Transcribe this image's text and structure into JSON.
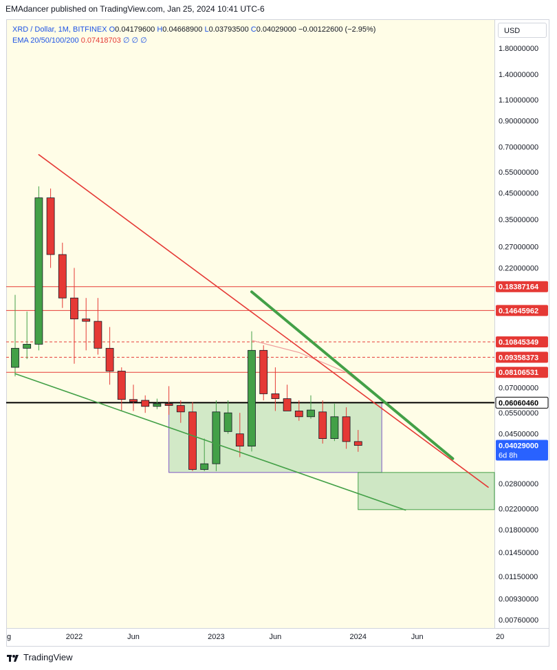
{
  "publisher_line": "EMAdancer published on TradingView.com, Jan 25, 2024 10:41 UTC-6",
  "legend": {
    "symbol": "XRD / Dollar, 1M, BITFINEX",
    "open_label": "O",
    "open": "0.04179600",
    "high_label": "H",
    "high": "0.04668900",
    "low_label": "L",
    "low": "0.03793500",
    "close_label": "C",
    "close": "0.04029000",
    "change": "−0.00122600 (−2.95%)",
    "ema_title": "EMA 20/50/100/200",
    "ema_value": "0.07418703",
    "ema_empty": "∅ ∅ ∅"
  },
  "currency_button": "USD",
  "footer_brand": "TradingView",
  "colors": {
    "up": "#43a047",
    "down": "#e53935",
    "background": "#fffde7",
    "label_red": "#e53935",
    "label_blue": "#2962ff",
    "box_fill": "#a5d6a7"
  },
  "chart_data": {
    "type": "candlestick",
    "scale": "log",
    "y_ticks": [
      "1.80000000",
      "1.40000000",
      "1.10000000",
      "0.90000000",
      "0.70000000",
      "0.55000000",
      "0.45000000",
      "0.35000000",
      "0.27000000",
      "0.22000000",
      "0.07000000",
      "0.05500000",
      "0.04500000",
      "0.02800000",
      "0.02200000",
      "0.01800000",
      "0.01450000",
      "0.01150000",
      "0.00930000",
      "0.00760000"
    ],
    "x_ticks": [
      "g",
      "2022",
      "Jun",
      "2023",
      "Jun",
      "2024",
      "Jun",
      "20"
    ],
    "candles": [
      {
        "date": "2021-08",
        "open": 0.085,
        "high": 0.17,
        "low": 0.078,
        "close": 0.102
      },
      {
        "date": "2021-09",
        "open": 0.102,
        "high": 0.145,
        "low": 0.092,
        "close": 0.106
      },
      {
        "date": "2021-10",
        "open": 0.106,
        "high": 0.48,
        "low": 0.1,
        "close": 0.43
      },
      {
        "date": "2021-11",
        "open": 0.43,
        "high": 0.47,
        "low": 0.22,
        "close": 0.25
      },
      {
        "date": "2021-12",
        "open": 0.25,
        "high": 0.28,
        "low": 0.15,
        "close": 0.165
      },
      {
        "date": "2022-01",
        "open": 0.165,
        "high": 0.22,
        "low": 0.088,
        "close": 0.135
      },
      {
        "date": "2022-02",
        "open": 0.135,
        "high": 0.165,
        "low": 0.1,
        "close": 0.132
      },
      {
        "date": "2022-03",
        "open": 0.132,
        "high": 0.165,
        "low": 0.096,
        "close": 0.102
      },
      {
        "date": "2022-04",
        "open": 0.102,
        "high": 0.125,
        "low": 0.072,
        "close": 0.082
      },
      {
        "date": "2022-05",
        "open": 0.082,
        "high": 0.085,
        "low": 0.056,
        "close": 0.0625
      },
      {
        "date": "2022-06",
        "open": 0.0625,
        "high": 0.072,
        "low": 0.056,
        "close": 0.0612
      },
      {
        "date": "2022-07",
        "open": 0.062,
        "high": 0.065,
        "low": 0.055,
        "close": 0.0585
      },
      {
        "date": "2022-08",
        "open": 0.0585,
        "high": 0.063,
        "low": 0.057,
        "close": 0.06
      },
      {
        "date": "2022-09",
        "open": 0.06,
        "high": 0.071,
        "low": 0.054,
        "close": 0.059
      },
      {
        "date": "2022-10",
        "open": 0.059,
        "high": 0.062,
        "low": 0.05,
        "close": 0.0555
      },
      {
        "date": "2022-11",
        "open": 0.0555,
        "high": 0.061,
        "low": 0.0315,
        "close": 0.032
      },
      {
        "date": "2022-12",
        "open": 0.032,
        "high": 0.043,
        "low": 0.0315,
        "close": 0.0338
      },
      {
        "date": "2022-12b",
        "open": 0.0338,
        "high": 0.062,
        "low": 0.0315,
        "close": 0.0555
      },
      {
        "date": "2023-02",
        "open": 0.046,
        "high": 0.062,
        "low": 0.045,
        "close": 0.055
      },
      {
        "date": "2023-03",
        "open": 0.045,
        "high": 0.055,
        "low": 0.036,
        "close": 0.04
      },
      {
        "date": "2023-04",
        "open": 0.04,
        "high": 0.12,
        "low": 0.038,
        "close": 0.1
      },
      {
        "date": "2023-05",
        "open": 0.1,
        "high": 0.105,
        "low": 0.062,
        "close": 0.066
      },
      {
        "date": "2023-06",
        "open": 0.066,
        "high": 0.085,
        "low": 0.056,
        "close": 0.063
      },
      {
        "date": "2023-07",
        "open": 0.063,
        "high": 0.072,
        "low": 0.056,
        "close": 0.056
      },
      {
        "date": "2023-08",
        "open": 0.056,
        "high": 0.062,
        "low": 0.051,
        "close": 0.053
      },
      {
        "date": "2023-09",
        "open": 0.053,
        "high": 0.065,
        "low": 0.052,
        "close": 0.0565
      },
      {
        "date": "2023-10",
        "open": 0.0555,
        "high": 0.062,
        "low": 0.041,
        "close": 0.043
      },
      {
        "date": "2023-11",
        "open": 0.043,
        "high": 0.06,
        "low": 0.042,
        "close": 0.053
      },
      {
        "date": "2023-12",
        "open": 0.053,
        "high": 0.058,
        "low": 0.039,
        "close": 0.0418
      },
      {
        "date": "2024-01",
        "open": 0.0418,
        "high": 0.0467,
        "low": 0.0379,
        "close": 0.0403
      }
    ],
    "price_labels": [
      {
        "value": "0.18387164",
        "style": "red"
      },
      {
        "value": "0.14645962",
        "style": "red"
      },
      {
        "value": "0.10845349",
        "style": "red"
      },
      {
        "value": "0.09358373",
        "style": "red"
      },
      {
        "value": "0.08106531",
        "style": "red"
      },
      {
        "value": "0.06060460",
        "style": "black"
      },
      {
        "value": "0.04029000",
        "style": "blue",
        "countdown": "6d 8h"
      }
    ],
    "horizontal_lines": [
      {
        "price": 0.18387164,
        "style": "solid",
        "color": "#e53935"
      },
      {
        "price": 0.14645962,
        "style": "solid",
        "color": "#e53935"
      },
      {
        "price": 0.10845349,
        "style": "dashed",
        "color": "#e53935"
      },
      {
        "price": 0.09358373,
        "style": "dashed",
        "color": "#e53935"
      },
      {
        "price": 0.08106531,
        "style": "solid",
        "color": "#e53935"
      },
      {
        "price": 0.0606046,
        "style": "solid",
        "color": "#000000"
      }
    ],
    "trendlines": [
      {
        "name": "red-trendline",
        "color": "#e53935",
        "from": {
          "date": "2021-10",
          "price": 0.65
        },
        "to": {
          "date": "2024-12",
          "price": 0.027
        }
      },
      {
        "name": "thick-green-trendline",
        "color": "#43a047",
        "from": {
          "date": "2023-04",
          "price": 0.175
        },
        "to": {
          "date": "2024-09",
          "price": 0.0355
        }
      },
      {
        "name": "green-support-line",
        "color": "#43a047",
        "from": {
          "date": "2021-08",
          "price": 0.08
        },
        "to": {
          "date": "2024-05",
          "price": 0.0217
        }
      }
    ],
    "ema_line": {
      "color": "#ef9a9a",
      "points": [
        {
          "date": "2023-04",
          "price": 0.11
        },
        {
          "date": "2023-08",
          "price": 0.098
        },
        {
          "date": "2023-12",
          "price": 0.081
        },
        {
          "date": "2024-01",
          "price": 0.0742
        }
      ]
    },
    "boxes": [
      {
        "name": "consolidation-box",
        "fill": "#a5d6a7",
        "border": "#7e57c2",
        "from": "2022-09",
        "to": "2024-03",
        "top": 0.0606046,
        "bottom": 0.0311
      },
      {
        "name": "target-box",
        "fill": "#a5d6a7",
        "border": "#43a047",
        "from": "2024-01",
        "to": "2025-02",
        "top": 0.0311,
        "bottom": 0.0218
      }
    ]
  }
}
